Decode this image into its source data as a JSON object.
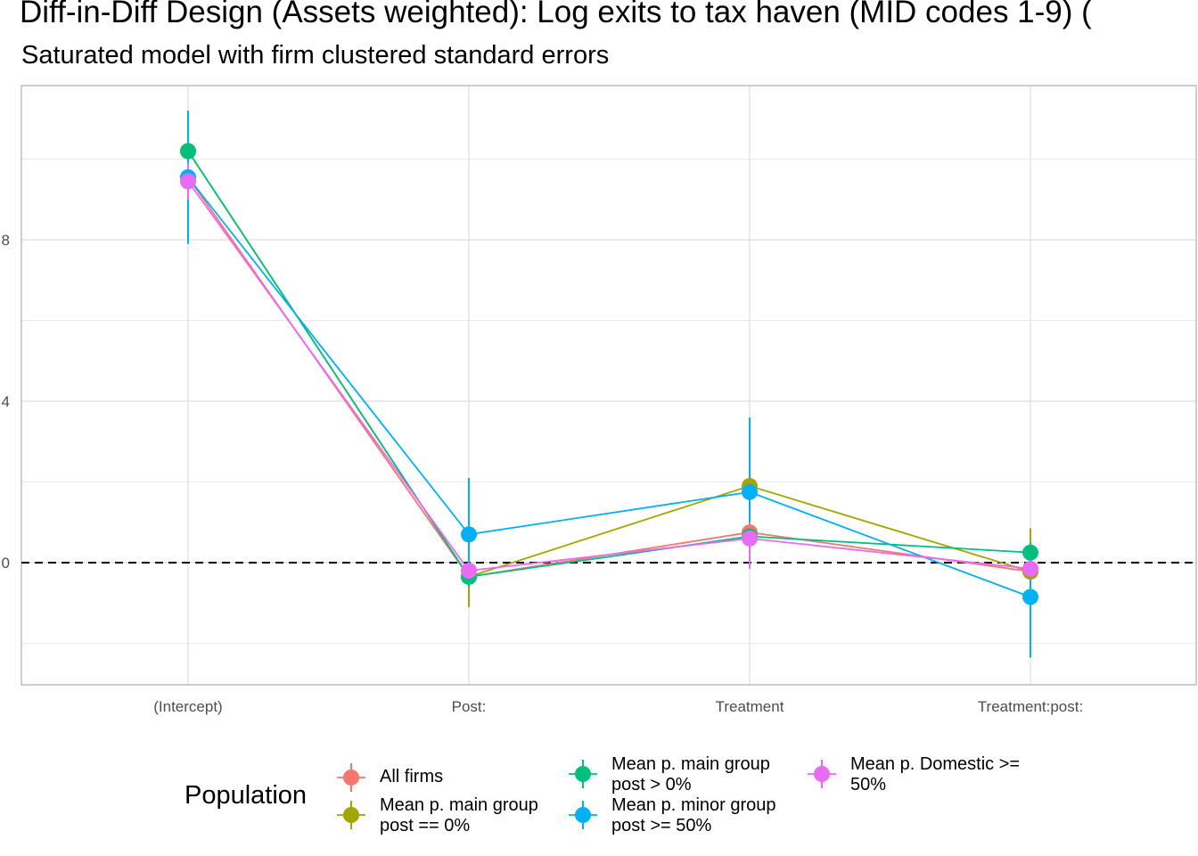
{
  "chart_data": {
    "type": "scatter",
    "title": "Diff-in-Diff Design (Assets weighted): Log exits to tax haven (MID codes 1-9)  (",
    "subtitle": "Saturated model with firm clustered standard errors",
    "categories": [
      "(Intercept)",
      "Post:",
      "Treatment",
      "Treatment:post:"
    ],
    "y_ticks": [
      0,
      4,
      8
    ],
    "ylim": [
      -3,
      11.7
    ],
    "grid": true,
    "reference_line": 0,
    "legend": {
      "title": "Population",
      "placement": "bottom"
    },
    "series": [
      {
        "name": "All firms",
        "color": "#F8766D",
        "values": [
          9.55,
          -0.35,
          0.75,
          -0.22
        ],
        "lower": [
          9.1,
          -0.55,
          0.55,
          -0.42
        ],
        "upper": [
          10.0,
          -0.15,
          0.95,
          -0.02
        ]
      },
      {
        "name": "Mean p. main group post == 0%",
        "color": "#A3A500",
        "values": [
          10.2,
          -0.35,
          1.9,
          -0.22
        ],
        "lower": [
          9.7,
          -1.1,
          1.6,
          -0.55
        ],
        "upper": [
          10.7,
          -0.05,
          2.2,
          0.85
        ]
      },
      {
        "name": "Mean p. main group post > 0%",
        "color": "#00BF7D",
        "values": [
          10.2,
          -0.35,
          0.65,
          0.25
        ],
        "lower": [
          9.75,
          -0.6,
          0.45,
          0.0
        ],
        "upper": [
          10.65,
          -0.1,
          0.85,
          0.5
        ]
      },
      {
        "name": "Mean p. minor group post >= 50%",
        "color": "#00B0F6",
        "values": [
          9.55,
          0.7,
          1.75,
          -0.85
        ],
        "lower": [
          7.9,
          -0.5,
          -0.1,
          -2.35
        ],
        "upper": [
          11.2,
          2.1,
          3.6,
          0.15
        ]
      },
      {
        "name": "Mean p. Domestic >= 50%",
        "color": "#E76BF3",
        "values": [
          9.45,
          -0.2,
          0.6,
          -0.15
        ],
        "lower": [
          9.0,
          -0.4,
          -0.15,
          -0.35
        ],
        "upper": [
          9.9,
          0.0,
          1.0,
          0.05
        ]
      }
    ]
  },
  "legend_items": [
    {
      "label_line1": "All firms",
      "label_line2": ""
    },
    {
      "label_line1": "Mean p. main group",
      "label_line2": "post == 0%"
    },
    {
      "label_line1": "Mean p. main group",
      "label_line2": "post > 0%"
    },
    {
      "label_line1": "Mean p. minor group",
      "label_line2": "post >= 50%"
    },
    {
      "label_line1": "Mean p. Domestic >=",
      "label_line2": "50%"
    }
  ]
}
